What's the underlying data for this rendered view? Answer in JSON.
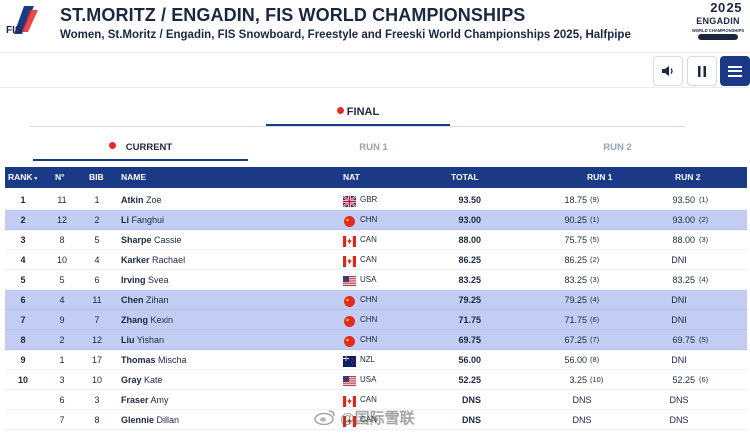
{
  "header": {
    "title": "ST.MORITZ / ENGADIN, FIS WORLD CHAMPIONSHIPS",
    "subtitle": "Women, St.Moritz / Engadin, FIS Snowboard, Freestyle and Freeski World Championships 2025, Halfpipe",
    "fis_logo_text": "FIS",
    "event_logo": {
      "year_top": "20",
      "year_bottom": "25",
      "city": "ENGADIN",
      "caption": "WORLD CHAMPIONSHIPS"
    }
  },
  "controls": {
    "sound_icon": "speaker-icon",
    "pause_icon": "pause-icon",
    "menu_icon": "hamburger-icon"
  },
  "tabs": {
    "final": "FINAL"
  },
  "subtabs": [
    "CURRENT",
    "RUN 1",
    "RUN 2"
  ],
  "table": {
    "columns": {
      "rank": "RANK",
      "no": "N°",
      "bib": "BIB",
      "name": "NAME",
      "nat": "NAT",
      "total": "TOTAL",
      "run1": "RUN 1",
      "run2": "RUN 2"
    },
    "rows": [
      {
        "rank": "1",
        "no": "11",
        "bib": "1",
        "last": "Atkin",
        "first": "Zoe",
        "nat": "GBR",
        "total": "93.50",
        "run1": "18.75",
        "run1_rank": "(9)",
        "run2": "93.50",
        "run2_rank": "(1)",
        "highlight": false
      },
      {
        "rank": "2",
        "no": "12",
        "bib": "2",
        "last": "Li",
        "first": "Fanghui",
        "nat": "CHN",
        "total": "93.00",
        "run1": "90.25",
        "run1_rank": "(1)",
        "run2": "93.00",
        "run2_rank": "(2)",
        "highlight": true
      },
      {
        "rank": "3",
        "no": "8",
        "bib": "5",
        "last": "Sharpe",
        "first": "Cassie",
        "nat": "CAN",
        "total": "88.00",
        "run1": "75.75",
        "run1_rank": "(5)",
        "run2": "88.00",
        "run2_rank": "(3)",
        "highlight": false
      },
      {
        "rank": "4",
        "no": "10",
        "bib": "4",
        "last": "Karker",
        "first": "Rachael",
        "nat": "CAN",
        "total": "86.25",
        "run1": "86.25",
        "run1_rank": "(2)",
        "run2": "DNI",
        "run2_rank": "",
        "highlight": false
      },
      {
        "rank": "5",
        "no": "5",
        "bib": "6",
        "last": "Irving",
        "first": "Svea",
        "nat": "USA",
        "total": "83.25",
        "run1": "83.25",
        "run1_rank": "(3)",
        "run2": "83.25",
        "run2_rank": "(4)",
        "highlight": false
      },
      {
        "rank": "6",
        "no": "4",
        "bib": "11",
        "last": "Chen",
        "first": "Zihan",
        "nat": "CHN",
        "total": "79.25",
        "run1": "79.25",
        "run1_rank": "(4)",
        "run2": "DNI",
        "run2_rank": "",
        "highlight": true
      },
      {
        "rank": "7",
        "no": "9",
        "bib": "7",
        "last": "Zhang",
        "first": "Kexin",
        "nat": "CHN",
        "total": "71.75",
        "run1": "71.75",
        "run1_rank": "(6)",
        "run2": "DNI",
        "run2_rank": "",
        "highlight": true
      },
      {
        "rank": "8",
        "no": "2",
        "bib": "12",
        "last": "Liu",
        "first": "Yishan",
        "nat": "CHN",
        "total": "69.75",
        "run1": "67.25",
        "run1_rank": "(7)",
        "run2": "69.75",
        "run2_rank": "(5)",
        "highlight": true
      },
      {
        "rank": "9",
        "no": "1",
        "bib": "17",
        "last": "Thomas",
        "first": "Mischa",
        "nat": "NZL",
        "total": "56.00",
        "run1": "56.00",
        "run1_rank": "(8)",
        "run2": "DNI",
        "run2_rank": "",
        "highlight": false
      },
      {
        "rank": "10",
        "no": "3",
        "bib": "10",
        "last": "Gray",
        "first": "Kate",
        "nat": "USA",
        "total": "52.25",
        "run1": "3.25",
        "run1_rank": "(10)",
        "run2": "52.25",
        "run2_rank": "(6)",
        "highlight": false
      },
      {
        "rank": "",
        "no": "6",
        "bib": "3",
        "last": "Fraser",
        "first": "Amy",
        "nat": "CAN",
        "total": "DNS",
        "run1": "DNS",
        "run1_rank": "",
        "run2": "DNS",
        "run2_rank": "",
        "highlight": false
      },
      {
        "rank": "",
        "no": "7",
        "bib": "8",
        "last": "Glennie",
        "first": "Dillan",
        "nat": "CAN",
        "total": "DNS",
        "run1": "DNS",
        "run1_rank": "",
        "run2": "DNS",
        "run2_rank": "",
        "highlight": false
      }
    ]
  },
  "watermark": "@国际雪联",
  "colors": {
    "header_bg": "#1b3a85",
    "highlight_row": "#c3cdf3",
    "live_dot": "#e32b2b"
  }
}
